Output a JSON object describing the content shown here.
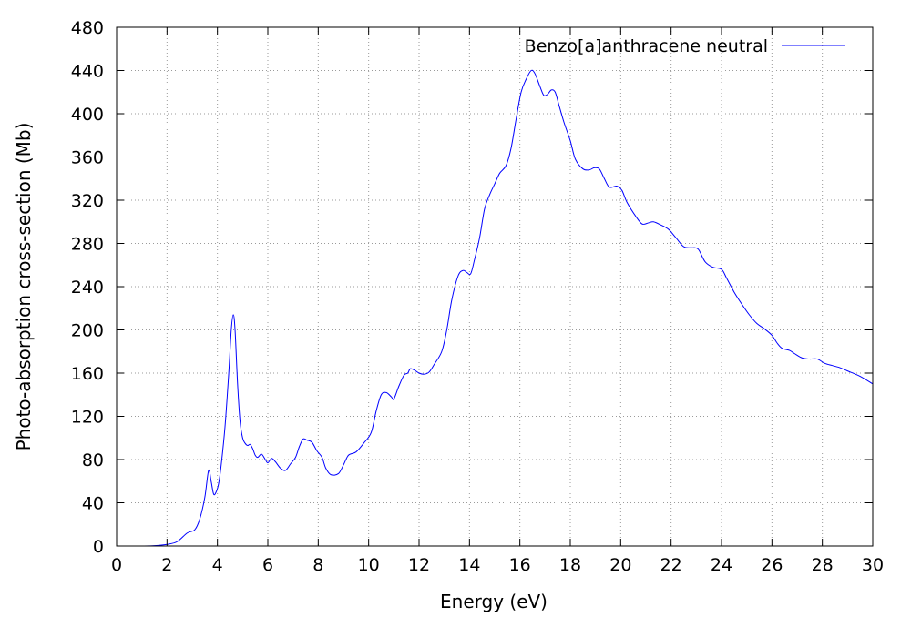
{
  "chart_data": {
    "type": "line",
    "xlabel": "Energy (eV)",
    "ylabel": "Photo-absorption cross-section (Mb)",
    "xlim": [
      0,
      30
    ],
    "ylim": [
      0,
      480
    ],
    "xticks": [
      0,
      2,
      4,
      6,
      8,
      10,
      12,
      14,
      16,
      18,
      20,
      22,
      24,
      26,
      28,
      30
    ],
    "yticks": [
      0,
      40,
      80,
      120,
      160,
      200,
      240,
      280,
      320,
      360,
      400,
      440,
      480
    ],
    "grid": true,
    "legend_position": "top-right",
    "series_color": "#0000ff",
    "series": [
      {
        "name": "Benzo[a]anthracene neutral",
        "points": [
          [
            1.0,
            0
          ],
          [
            1.5,
            0.3
          ],
          [
            2.0,
            1.5
          ],
          [
            2.4,
            4
          ],
          [
            2.8,
            12
          ],
          [
            3.1,
            15
          ],
          [
            3.3,
            25
          ],
          [
            3.5,
            45
          ],
          [
            3.65,
            70
          ],
          [
            3.75,
            60
          ],
          [
            3.85,
            48
          ],
          [
            3.95,
            50
          ],
          [
            4.05,
            58
          ],
          [
            4.15,
            75
          ],
          [
            4.3,
            110
          ],
          [
            4.45,
            160
          ],
          [
            4.55,
            200
          ],
          [
            4.63,
            214
          ],
          [
            4.7,
            200
          ],
          [
            4.8,
            150
          ],
          [
            4.9,
            115
          ],
          [
            5.0,
            100
          ],
          [
            5.1,
            95
          ],
          [
            5.2,
            93
          ],
          [
            5.3,
            94
          ],
          [
            5.4,
            90
          ],
          [
            5.5,
            84
          ],
          [
            5.6,
            82
          ],
          [
            5.75,
            85
          ],
          [
            5.9,
            80
          ],
          [
            6.0,
            77
          ],
          [
            6.15,
            81
          ],
          [
            6.3,
            78
          ],
          [
            6.5,
            72
          ],
          [
            6.7,
            70
          ],
          [
            6.9,
            76
          ],
          [
            7.1,
            82
          ],
          [
            7.25,
            92
          ],
          [
            7.4,
            99
          ],
          [
            7.55,
            98
          ],
          [
            7.75,
            96
          ],
          [
            7.95,
            88
          ],
          [
            8.15,
            82
          ],
          [
            8.3,
            72
          ],
          [
            8.5,
            66
          ],
          [
            8.8,
            67
          ],
          [
            9.0,
            75
          ],
          [
            9.2,
            84
          ],
          [
            9.5,
            87
          ],
          [
            9.8,
            95
          ],
          [
            10.1,
            105
          ],
          [
            10.3,
            125
          ],
          [
            10.5,
            140
          ],
          [
            10.7,
            142
          ],
          [
            10.9,
            138
          ],
          [
            11.0,
            136
          ],
          [
            11.2,
            148
          ],
          [
            11.4,
            158
          ],
          [
            11.55,
            160
          ],
          [
            11.65,
            164
          ],
          [
            11.8,
            163
          ],
          [
            12.0,
            160
          ],
          [
            12.2,
            159
          ],
          [
            12.4,
            161
          ],
          [
            12.6,
            168
          ],
          [
            12.9,
            180
          ],
          [
            13.1,
            200
          ],
          [
            13.3,
            228
          ],
          [
            13.55,
            250
          ],
          [
            13.75,
            255
          ],
          [
            13.9,
            253
          ],
          [
            14.05,
            252
          ],
          [
            14.2,
            265
          ],
          [
            14.4,
            285
          ],
          [
            14.6,
            312
          ],
          [
            14.8,
            325
          ],
          [
            15.0,
            335
          ],
          [
            15.2,
            345
          ],
          [
            15.45,
            352
          ],
          [
            15.65,
            368
          ],
          [
            15.85,
            395
          ],
          [
            16.05,
            420
          ],
          [
            16.25,
            432
          ],
          [
            16.45,
            440
          ],
          [
            16.6,
            437
          ],
          [
            16.8,
            425
          ],
          [
            16.95,
            417
          ],
          [
            17.1,
            418
          ],
          [
            17.25,
            422
          ],
          [
            17.4,
            420
          ],
          [
            17.55,
            408
          ],
          [
            17.75,
            392
          ],
          [
            18.0,
            375
          ],
          [
            18.2,
            358
          ],
          [
            18.5,
            349
          ],
          [
            18.75,
            348
          ],
          [
            18.95,
            350
          ],
          [
            19.15,
            349
          ],
          [
            19.35,
            340
          ],
          [
            19.55,
            332
          ],
          [
            19.85,
            333
          ],
          [
            20.05,
            329
          ],
          [
            20.25,
            318
          ],
          [
            20.6,
            305
          ],
          [
            20.85,
            298
          ],
          [
            21.1,
            299
          ],
          [
            21.3,
            300
          ],
          [
            21.6,
            297
          ],
          [
            21.9,
            293
          ],
          [
            22.2,
            285
          ],
          [
            22.5,
            277
          ],
          [
            22.8,
            276
          ],
          [
            22.95,
            276
          ],
          [
            23.1,
            274
          ],
          [
            23.35,
            263
          ],
          [
            23.65,
            258
          ],
          [
            24.0,
            256
          ],
          [
            24.2,
            248
          ],
          [
            24.5,
            235
          ],
          [
            24.8,
            224
          ],
          [
            25.1,
            214
          ],
          [
            25.4,
            206
          ],
          [
            25.7,
            201
          ],
          [
            26.0,
            195
          ],
          [
            26.2,
            188
          ],
          [
            26.4,
            183
          ],
          [
            26.7,
            181
          ],
          [
            26.9,
            178
          ],
          [
            27.2,
            174
          ],
          [
            27.5,
            173
          ],
          [
            27.8,
            173
          ],
          [
            28.1,
            169
          ],
          [
            28.4,
            167
          ],
          [
            28.7,
            165
          ],
          [
            29.0,
            162
          ],
          [
            29.5,
            157
          ],
          [
            30.0,
            150
          ]
        ]
      }
    ]
  }
}
